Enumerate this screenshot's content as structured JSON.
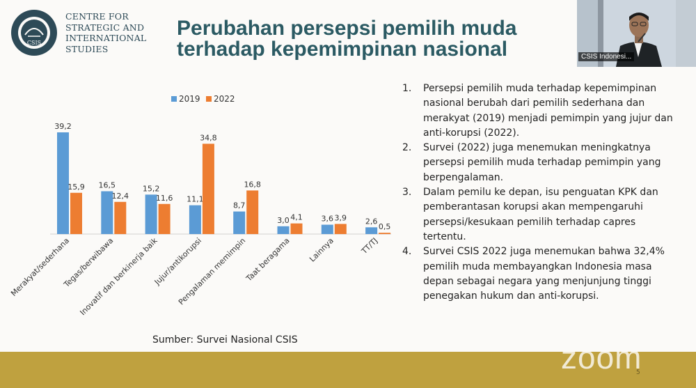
{
  "header": {
    "org_lines": [
      "CENTRE FOR",
      "STRATEGIC AND",
      "INTERNATIONAL",
      "STUDIES"
    ],
    "logo_text": "CSIS",
    "title_lines": [
      "Perubahan persepsi pemilih muda",
      "terhadap kepemimpinan nasional"
    ]
  },
  "video": {
    "participant_name": "CSIS Indonesi..."
  },
  "notes": [
    {
      "num": "1.",
      "text": "Persepsi pemilih muda terhadap kepemimpinan nasional berubah dari pemilih sederhana dan merakyat (2019) menjadi pemimpin yang jujur dan anti-korupsi (2022)."
    },
    {
      "num": "2.",
      "text": "Survei (2022) juga menemukan meningkatnya persepsi pemilih muda terhadap pemimpin yang berpengalaman."
    },
    {
      "num": "3.",
      "text": "Dalam pemilu ke depan, isu penguatan KPK dan pemberantasan korupsi akan mempengaruhi persepsi/kesukaan pemilih terhadap capres tertentu."
    },
    {
      "num": "4.",
      "text": "Survei CSIS 2022 juga menemukan bahwa 32,4% pemilih muda membayangkan Indonesia masa depan sebagai negara yang menjunjung tinggi penegakan hukum dan anti-korupsi."
    }
  ],
  "source": "Sumber: Survei Nasional CSIS",
  "branding": {
    "zoom": "zoom",
    "page_num": "5"
  },
  "colors": {
    "series_2019": "#5b9bd5",
    "series_2022": "#ed7d31",
    "title": "#2b5a63",
    "bottom_bar": "#bfa13f"
  },
  "chart_data": {
    "type": "bar",
    "categories": [
      "Merakyat/sederhana",
      "Tegas/berwibawa",
      "Inovatif dan berkinerja baik",
      "Jujur/antikorupsi",
      "Pengalaman memimpin",
      "Taat beragama",
      "Lainnya",
      "TT/TJ"
    ],
    "series": [
      {
        "name": "2019",
        "values": [
          39.2,
          16.5,
          15.2,
          11.1,
          8.7,
          3.0,
          3.6,
          2.6
        ],
        "labels": [
          "39,2",
          "16,5",
          "15,2",
          "11,1",
          "8,7",
          "3,0",
          "3,6",
          "2,6"
        ]
      },
      {
        "name": "2022",
        "values": [
          15.9,
          12.4,
          11.6,
          34.8,
          16.8,
          4.1,
          3.9,
          0.5
        ],
        "labels": [
          "15,9",
          "12,4",
          "11,6",
          "34,8",
          "16,8",
          "4,1",
          "3,9",
          "0,5"
        ]
      }
    ],
    "ylim": [
      0,
      39.2
    ],
    "legend_position": "top",
    "grid": false
  }
}
